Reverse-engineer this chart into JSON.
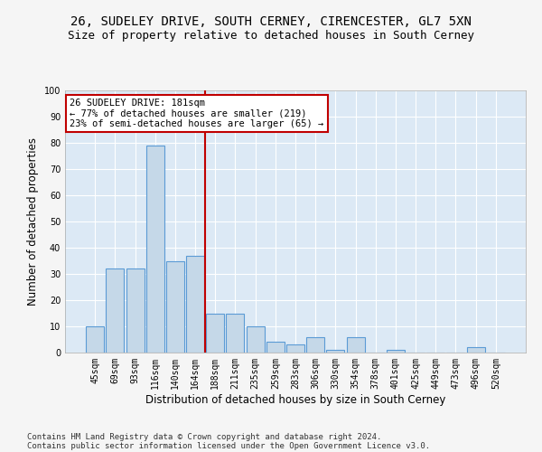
{
  "title_line1": "26, SUDELEY DRIVE, SOUTH CERNEY, CIRENCESTER, GL7 5XN",
  "title_line2": "Size of property relative to detached houses in South Cerney",
  "xlabel": "Distribution of detached houses by size in South Cerney",
  "ylabel": "Number of detached properties",
  "footer_line1": "Contains HM Land Registry data © Crown copyright and database right 2024.",
  "footer_line2": "Contains public sector information licensed under the Open Government Licence v3.0.",
  "categories": [
    "45sqm",
    "69sqm",
    "93sqm",
    "116sqm",
    "140sqm",
    "164sqm",
    "188sqm",
    "211sqm",
    "235sqm",
    "259sqm",
    "283sqm",
    "306sqm",
    "330sqm",
    "354sqm",
    "378sqm",
    "401sqm",
    "425sqm",
    "449sqm",
    "473sqm",
    "496sqm",
    "520sqm"
  ],
  "values": [
    10,
    32,
    32,
    79,
    35,
    37,
    15,
    15,
    10,
    4,
    3,
    6,
    1,
    6,
    0,
    1,
    0,
    0,
    0,
    2,
    0
  ],
  "bar_color": "#c5d8e8",
  "bar_edge_color": "#5b9bd5",
  "vline_x_index": 5.5,
  "vline_color": "#c00000",
  "annotation_text": "26 SUDELEY DRIVE: 181sqm\n← 77% of detached houses are smaller (219)\n23% of semi-detached houses are larger (65) →",
  "annotation_box_color": "#c00000",
  "ylim": [
    0,
    100
  ],
  "yticks": [
    0,
    10,
    20,
    30,
    40,
    50,
    60,
    70,
    80,
    90,
    100
  ],
  "plot_bg_color": "#dce9f5",
  "fig_bg_color": "#f5f5f5",
  "grid_color": "#ffffff",
  "title_fontsize": 10,
  "subtitle_fontsize": 9,
  "axis_label_fontsize": 8.5,
  "tick_fontsize": 7,
  "footer_fontsize": 6.5,
  "annot_fontsize": 7.5
}
